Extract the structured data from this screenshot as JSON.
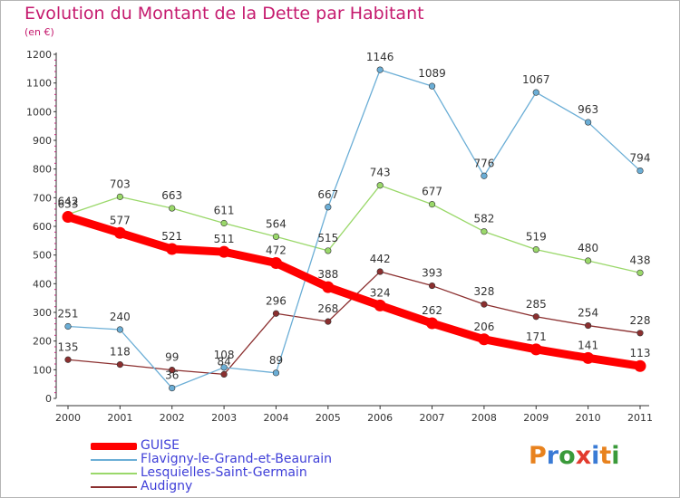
{
  "title": "Evolution du Montant de la Dette par Habitant",
  "subtitle": "(en €)",
  "logo_text": "Proxiti",
  "chart_data": {
    "type": "line",
    "categories": [
      "2000",
      "2001",
      "2002",
      "2003",
      "2004",
      "2005",
      "2006",
      "2007",
      "2008",
      "2009",
      "2010",
      "2011"
    ],
    "y_ticks": [
      "0",
      "100",
      "200",
      "300",
      "400",
      "500",
      "600",
      "700",
      "800",
      "900",
      "1000",
      "1100",
      "1200"
    ],
    "ylim": [
      0,
      1200
    ],
    "grid": false,
    "legend_position": "bottom-left",
    "series": [
      {
        "name": "GUISE",
        "color": "#ff0000",
        "values": [
          633,
          577,
          521,
          511,
          472,
          388,
          324,
          262,
          206,
          171,
          141,
          113
        ]
      },
      {
        "name": "Flavigny-le-Grand-et-Beaurain",
        "color": "#6baed6",
        "values": [
          251,
          240,
          36,
          108,
          89,
          667,
          1146,
          1089,
          776,
          1067,
          963,
          794
        ]
      },
      {
        "name": "Lesquielles-Saint-Germain",
        "color": "#9ad86a",
        "values": [
          642,
          703,
          663,
          611,
          564,
          515,
          743,
          677,
          582,
          519,
          480,
          438
        ]
      },
      {
        "name": "Audigny",
        "color": "#8b2f2f",
        "values": [
          135,
          118,
          99,
          84,
          296,
          268,
          442,
          393,
          328,
          285,
          254,
          228
        ]
      }
    ]
  }
}
